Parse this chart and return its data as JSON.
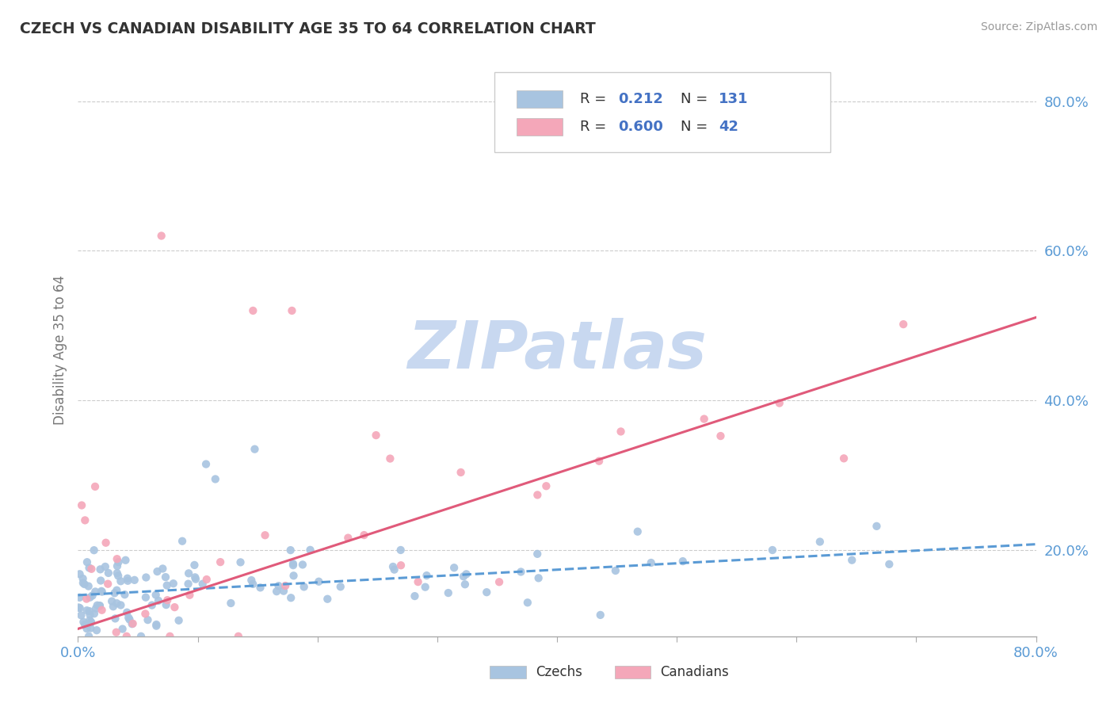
{
  "title": "CZECH VS CANADIAN DISABILITY AGE 35 TO 64 CORRELATION CHART",
  "source_text": "Source: ZipAtlas.com",
  "ylabel": "Disability Age 35 to 64",
  "xlim": [
    0.0,
    0.8
  ],
  "ylim": [
    0.085,
    0.85
  ],
  "xticks": [
    0.0,
    0.1,
    0.2,
    0.3,
    0.4,
    0.5,
    0.6,
    0.7,
    0.8
  ],
  "xticklabels": [
    "0.0%",
    "",
    "",
    "",
    "",
    "",
    "",
    "",
    "80.0%"
  ],
  "ytick_positions": [
    0.2,
    0.4,
    0.6,
    0.8
  ],
  "ytick_labels": [
    "20.0%",
    "40.0%",
    "60.0%",
    "80.0%"
  ],
  "czech_color": "#a8c4e0",
  "canadian_color": "#f4a7b9",
  "czech_line_color": "#5b9bd5",
  "canadian_line_color": "#e05a7a",
  "watermark_text": "ZIPatlas",
  "watermark_color": "#c8d8f0",
  "czech_R": 0.212,
  "czech_N": 131,
  "canadian_R": 0.6,
  "canadian_N": 42,
  "grid_color": "#cccccc",
  "background_color": "#ffffff",
  "title_color": "#333333",
  "axis_label_color": "#777777",
  "tick_label_color": "#5b9bd5"
}
